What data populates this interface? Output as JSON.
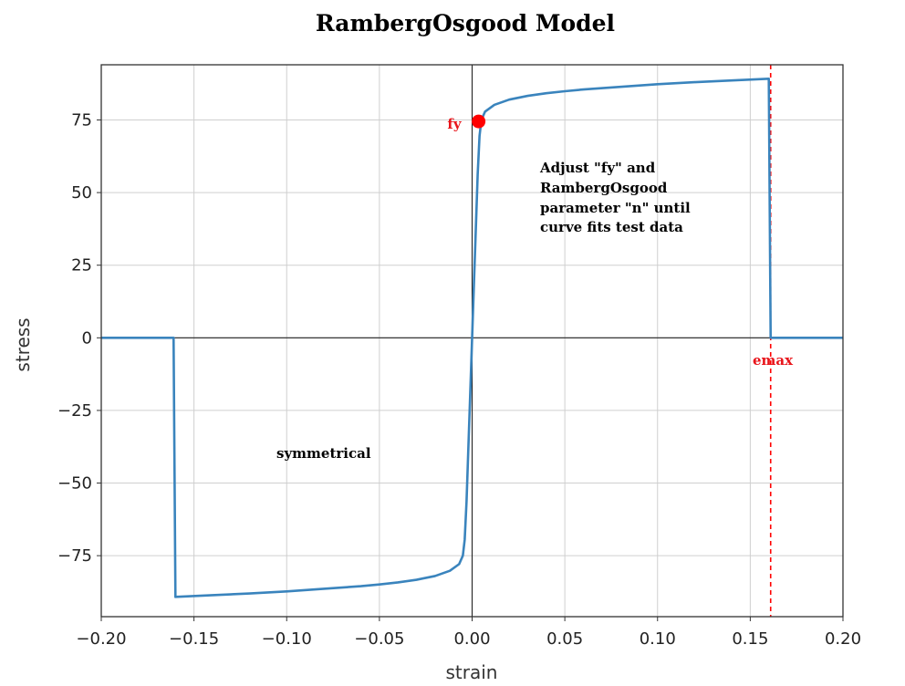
{
  "chart_data": {
    "type": "line",
    "title": "RambergOsgood Model",
    "xlabel": "strain",
    "ylabel": "stress",
    "xlim": [
      -0.2,
      0.2
    ],
    "ylim": [
      -96,
      94
    ],
    "xticks": [
      -0.2,
      -0.15,
      -0.1,
      -0.05,
      0.0,
      0.05,
      0.1,
      0.15,
      0.2
    ],
    "xtick_labels": [
      "−0.20",
      "−0.15",
      "−0.10",
      "−0.05",
      "0.00",
      "0.05",
      "0.10",
      "0.15",
      "0.20"
    ],
    "yticks": [
      -75,
      -50,
      -25,
      0,
      25,
      50,
      75
    ],
    "ytick_labels": [
      "−75",
      "−50",
      "−25",
      "0",
      "25",
      "50",
      "75"
    ],
    "grid": true,
    "series": [
      {
        "color": "#3a84bd",
        "points": [
          [
            -0.2,
            0
          ],
          [
            -0.161,
            0
          ],
          [
            -0.16,
            -89.2
          ],
          [
            -0.14,
            -88.6
          ],
          [
            -0.12,
            -88.0
          ],
          [
            -0.1,
            -87.3
          ],
          [
            -0.08,
            -86.4
          ],
          [
            -0.06,
            -85.5
          ],
          [
            -0.05,
            -84.9
          ],
          [
            -0.04,
            -84.2
          ],
          [
            -0.03,
            -83.3
          ],
          [
            -0.02,
            -82.0
          ],
          [
            -0.012,
            -80.2
          ],
          [
            -0.007,
            -77.9
          ],
          [
            -0.005,
            -75.0
          ],
          [
            -0.004,
            -69.5
          ],
          [
            -0.003,
            -56.3
          ],
          [
            -0.002,
            -37.5
          ],
          [
            -0.001,
            -18.8
          ],
          [
            0.0,
            0.0
          ],
          [
            0.001,
            18.8
          ],
          [
            0.002,
            37.5
          ],
          [
            0.003,
            56.3
          ],
          [
            0.004,
            69.5
          ],
          [
            0.005,
            75.0
          ],
          [
            0.007,
            77.9
          ],
          [
            0.012,
            80.2
          ],
          [
            0.02,
            82.0
          ],
          [
            0.03,
            83.3
          ],
          [
            0.04,
            84.2
          ],
          [
            0.05,
            84.9
          ],
          [
            0.06,
            85.5
          ],
          [
            0.08,
            86.4
          ],
          [
            0.1,
            87.3
          ],
          [
            0.12,
            88.0
          ],
          [
            0.14,
            88.6
          ],
          [
            0.16,
            89.2
          ],
          [
            0.161,
            0
          ],
          [
            0.2,
            0
          ]
        ]
      }
    ],
    "markers": [
      {
        "x": 0.0035,
        "y": 74.5,
        "label": "fy",
        "color": "#ff0000"
      }
    ],
    "vlines": [
      {
        "x": 0.161,
        "label": "emax",
        "color": "#ff0000",
        "style": "dashed"
      }
    ],
    "annotations": {
      "note_lines": [
        "Adjust \"fy\" and",
        "RambergOsgood",
        "parameter \"n\" until",
        "curve fits test data"
      ],
      "symmetrical": "symmetrical"
    },
    "colors": {
      "curve": "#3a84bd",
      "highlight": "#ff0000",
      "grid": "#cfcfcf",
      "frame": "#333333"
    }
  }
}
